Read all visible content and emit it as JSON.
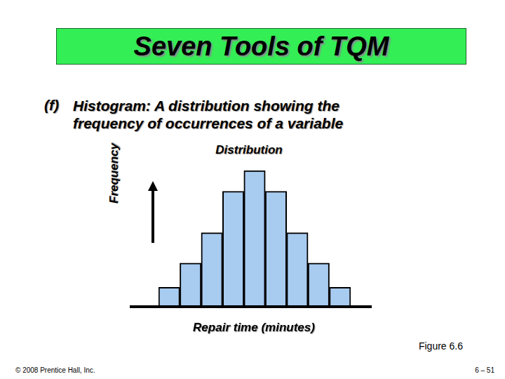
{
  "slide": {
    "heading": "Seven Tools of TQM",
    "label": "(f)",
    "text": "Histogram: A distribution showing the frequency of occurrences of a variable",
    "figure": "Figure 6.6",
    "copyright": "© 2008 Prentice Hall, Inc.",
    "page": "6 – 51"
  },
  "chart_data": {
    "type": "bar",
    "title": "Distribution",
    "x_label": "Repair time (minutes)",
    "y_label": "Frequency",
    "categories": [
      null,
      null,
      null,
      null,
      null,
      null,
      null,
      null,
      null
    ],
    "values": [
      28,
      63,
      107,
      167,
      197,
      167,
      107,
      63,
      28
    ],
    "color": "#a8cbf0",
    "ylim": [
      0,
      200
    ],
    "grid": false,
    "tick_labels": false
  }
}
